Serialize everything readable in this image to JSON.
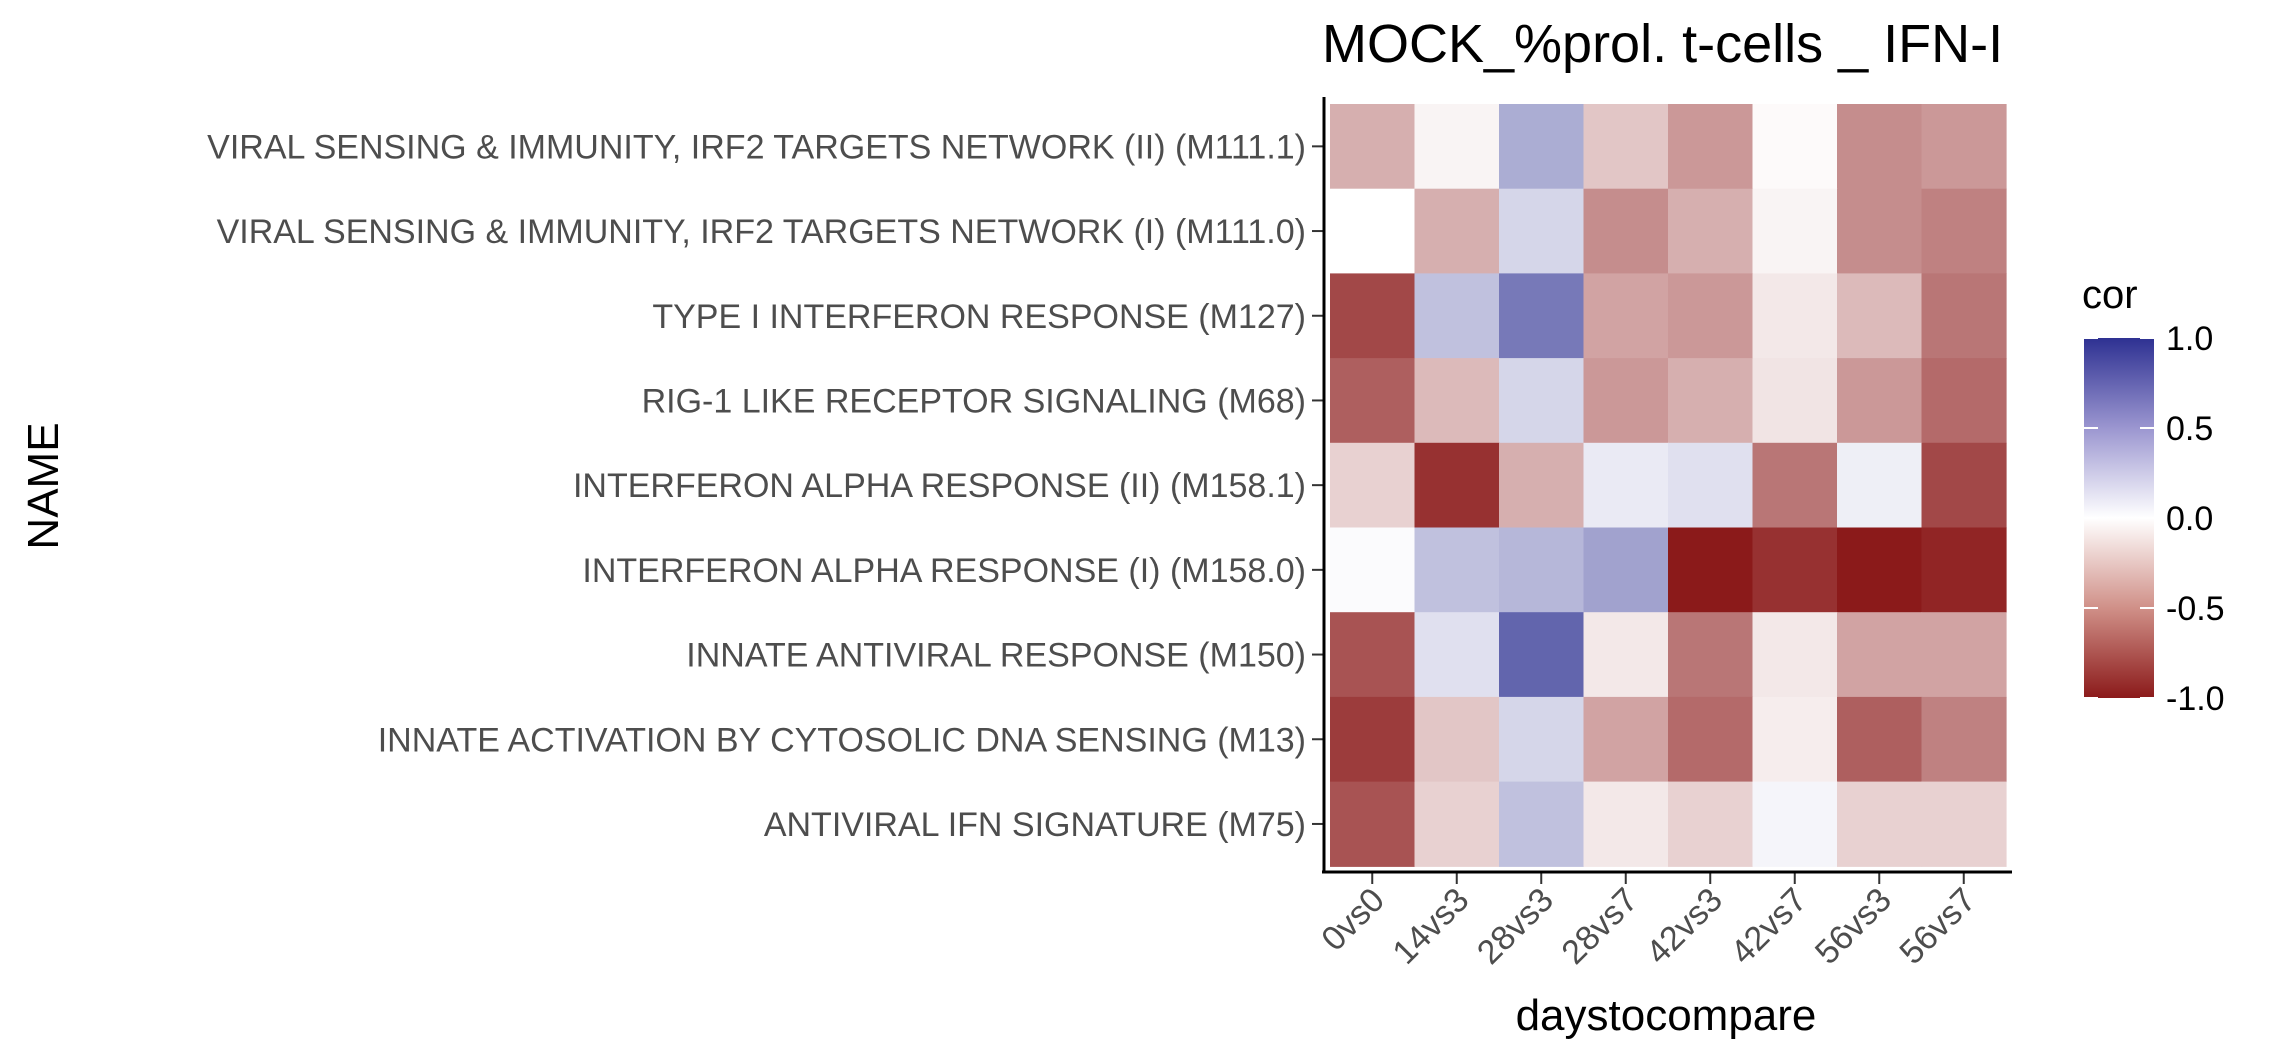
{
  "chart_data": {
    "type": "heatmap",
    "title": "MOCK_%prol. t-cells _ IFN-I",
    "xlabel": "daystocompare",
    "ylabel": "NAME",
    "x_categories": [
      "0vs0",
      "14vs3",
      "28vs3",
      "28vs7",
      "42vs3",
      "42vs7",
      "56vs3",
      "56vs7"
    ],
    "y_categories": [
      "VIRAL SENSING & IMMUNITY,  IRF2 TARGETS NETWORK (II) (M111.1)",
      "VIRAL SENSING & IMMUNITY,  IRF2 TARGETS NETWORK (I) (M111.0)",
      "TYPE I INTERFERON RESPONSE (M127)",
      "RIG-1 LIKE RECEPTOR SIGNALING (M68)",
      "INTERFERON ALPHA RESPONSE (II) (M158.1)",
      "INTERFERON ALPHA RESPONSE (I) (M158.0)",
      "INNATE ANTIVIRAL RESPONSE (M150)",
      "INNATE ACTIVATION BY CYTOSOLIC DNA SENSING (M13)",
      "ANTIVIRAL IFN SIGNATURE (M75)"
    ],
    "values": [
      [
        -0.35,
        -0.05,
        0.4,
        -0.25,
        -0.45,
        -0.02,
        -0.5,
        -0.45
      ],
      [
        0.0,
        -0.35,
        0.2,
        -0.5,
        -0.35,
        -0.05,
        -0.5,
        -0.55
      ],
      [
        -0.8,
        0.3,
        0.65,
        -0.4,
        -0.45,
        -0.1,
        -0.3,
        -0.6
      ],
      [
        -0.7,
        -0.3,
        0.2,
        -0.45,
        -0.35,
        -0.12,
        -0.45,
        -0.65
      ],
      [
        -0.2,
        -0.9,
        -0.35,
        0.1,
        0.15,
        -0.6,
        0.08,
        -0.8
      ],
      [
        0.02,
        0.3,
        0.35,
        0.45,
        -1.0,
        -0.9,
        -1.0,
        -0.95
      ],
      [
        -0.75,
        0.15,
        0.75,
        -0.1,
        -0.6,
        -0.1,
        -0.4,
        -0.4
      ],
      [
        -0.85,
        -0.25,
        0.2,
        -0.4,
        -0.65,
        -0.08,
        -0.7,
        -0.55
      ],
      [
        -0.75,
        -0.2,
        0.3,
        -0.1,
        -0.2,
        0.05,
        -0.2,
        -0.2
      ]
    ],
    "legend": {
      "title": "cor",
      "range": [
        -1.0,
        1.0
      ],
      "ticks": [
        1.0,
        0.5,
        0.0,
        -0.5,
        -1.0
      ],
      "tick_labels": [
        "1.0",
        "0.5",
        "0.0",
        "-0.5",
        "-1.0"
      ],
      "colors": {
        "low": "#8b1a1a",
        "mid": "#ffffff",
        "high": "#2e3192"
      },
      "placement": "right"
    },
    "grid": false
  }
}
